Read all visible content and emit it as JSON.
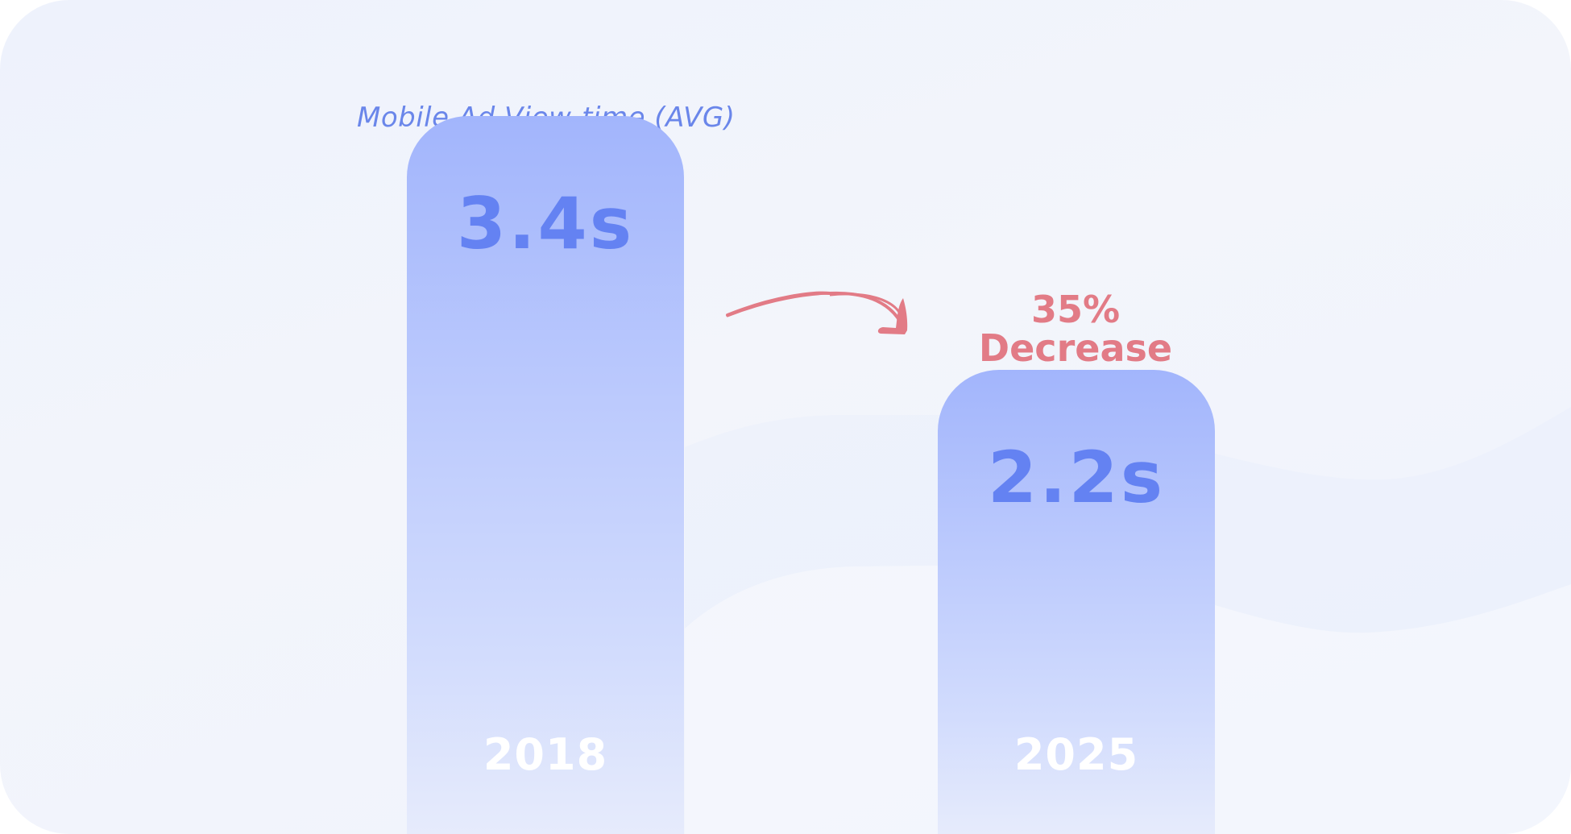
{
  "chart_data": {
    "type": "bar",
    "title": "Mobile Ad View-time (AVG)",
    "categories": [
      "2018",
      "2025"
    ],
    "values": [
      3.4,
      2.2
    ],
    "value_labels": [
      "3.4s",
      "2.2s"
    ],
    "unit": "s",
    "grid": false,
    "annotation": {
      "percent": "35%",
      "text": "Decrease",
      "color": "#e27b86"
    }
  },
  "colors": {
    "bar_top": "#a2b5fc",
    "bar_bottom": "#e6ebfc",
    "value_text": "#6482f2",
    "title_text": "#6a86ea",
    "year_text": "#ffffff"
  }
}
